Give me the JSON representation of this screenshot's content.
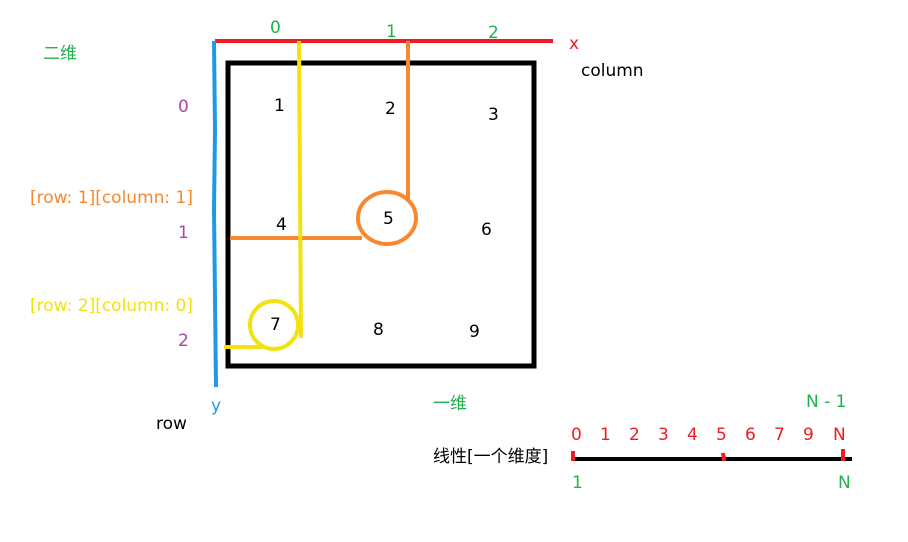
{
  "colors": {
    "blue": "#1e9be0",
    "red": "#ed1c24",
    "green": "#22b14c",
    "purple": "#a349a4",
    "orange": "#f7882f",
    "yellow": "#f2e20f",
    "black": "#000000"
  },
  "two_d": {
    "title": "二维",
    "x_axis_label": "x",
    "x_axis_name": "column",
    "y_axis_label": "y",
    "y_axis_name": "row",
    "column_indices": [
      "0",
      "1",
      "2"
    ],
    "row_indices": [
      "0",
      "1",
      "2"
    ],
    "cells": [
      "1",
      "2",
      "3",
      "4",
      "5",
      "6",
      "7",
      "8",
      "9"
    ],
    "annotation_5": "[row: 1][column: 1]",
    "annotation_7": "[row: 2][column: 0]"
  },
  "one_d": {
    "title": "一维",
    "linear_label": "线性[一个维度]",
    "end_index_label": "N - 1",
    "indices": [
      "0",
      "1",
      "2",
      "3",
      "4",
      "5",
      "6",
      "7",
      "9",
      "N"
    ],
    "start_position": "1",
    "end_position": "N"
  }
}
